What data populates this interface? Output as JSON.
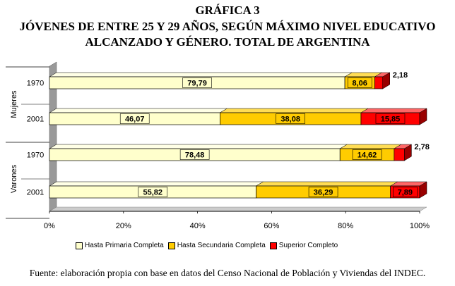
{
  "title": "GRÁFICA 3",
  "subtitle_line1": "JÓVENES DE ENTRE 25 Y 29 AÑOS, SEGÚN MÁXIMO NIVEL EDUCATIVO",
  "subtitle_line2": "ALCANZADO Y GÉNERO. TOTAL DE ARGENTINA",
  "source": "Fuente: elaboración propia con base en datos del Censo Nacional de Población y Viviendas del INDEC.",
  "chart_data": {
    "type": "bar",
    "orientation": "horizontal",
    "stacked": true,
    "groups": [
      {
        "name": "Mujeres",
        "rows": [
          {
            "label": "1970",
            "values": [
              79.79,
              8.06,
              2.18
            ]
          },
          {
            "label": "2001",
            "values": [
              46.07,
              38.08,
              15.85
            ]
          }
        ]
      },
      {
        "name": "Varones",
        "rows": [
          {
            "label": "1970",
            "values": [
              78.48,
              14.62,
              2.78
            ]
          },
          {
            "label": "2001",
            "values": [
              55.82,
              36.29,
              7.89
            ]
          }
        ]
      }
    ],
    "series": [
      {
        "name": "Hasta Primaria Completa",
        "color": "#ffffcc"
      },
      {
        "name": "Hasta Secundaria Completa",
        "color": "#ffcc00"
      },
      {
        "name": "Superior Completo",
        "color": "#ff0000"
      }
    ],
    "data_labels": [
      [
        "79,79",
        "8,06",
        "2,18"
      ],
      [
        "46,07",
        "38,08",
        "15,85"
      ],
      [
        "78,48",
        "14,62",
        "2,78"
      ],
      [
        "55,82",
        "36,29",
        "7,89"
      ]
    ],
    "xlim": [
      0,
      100
    ],
    "xticks": [
      "0%",
      "20%",
      "40%",
      "60%",
      "80%",
      "100%"
    ],
    "legend_position": "bottom"
  }
}
